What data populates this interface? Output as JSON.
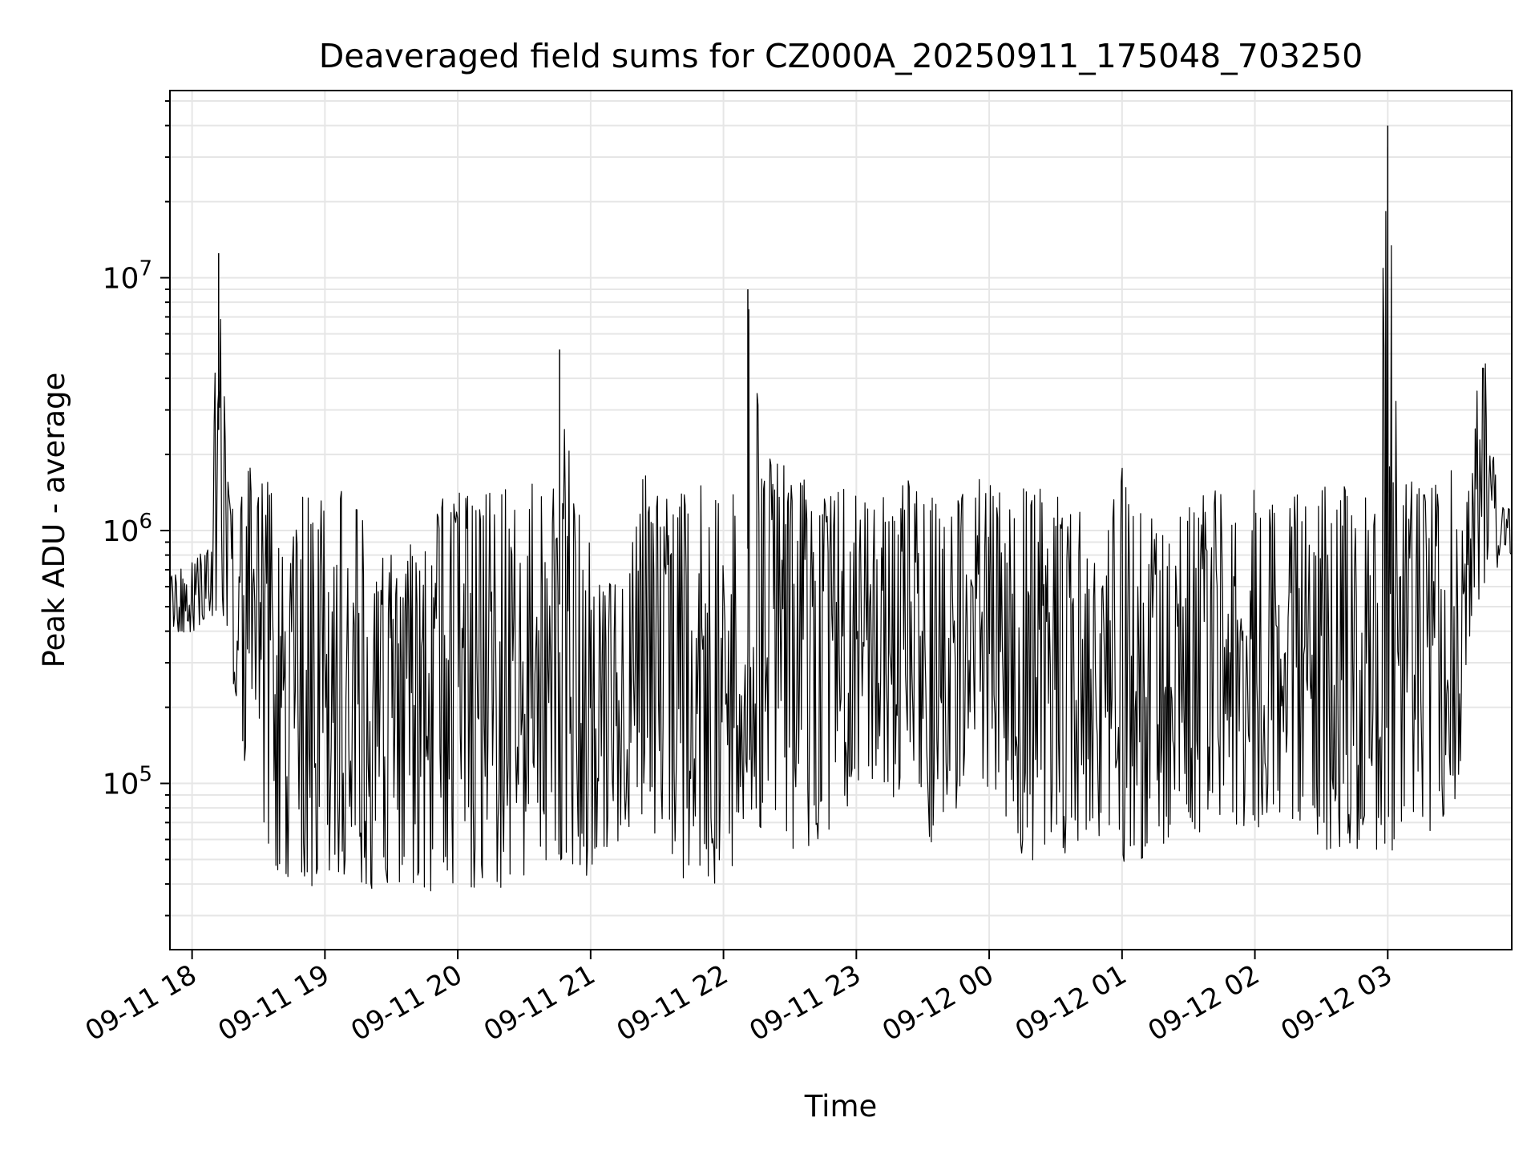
{
  "chart_data": {
    "type": "line",
    "title": "Deaveraged field sums for CZ000A_20250911_175048_703250",
    "xlabel": "Time",
    "ylabel": "Peak ADU - average",
    "yscale": "log",
    "grid": true,
    "xlim": [
      "2025-09-11 17:50",
      "2025-09-12 03:56"
    ],
    "ylim": [
      22000,
      55000000
    ],
    "x_ticks": [
      {
        "t": "2025-09-11 18:00",
        "label": "09-11 18"
      },
      {
        "t": "2025-09-11 19:00",
        "label": "09-11 19"
      },
      {
        "t": "2025-09-11 20:00",
        "label": "09-11 20"
      },
      {
        "t": "2025-09-11 21:00",
        "label": "09-11 21"
      },
      {
        "t": "2025-09-11 22:00",
        "label": "09-11 22"
      },
      {
        "t": "2025-09-11 23:00",
        "label": "09-11 23"
      },
      {
        "t": "2025-09-12 00:00",
        "label": "09-12 00"
      },
      {
        "t": "2025-09-12 01:00",
        "label": "09-12 01"
      },
      {
        "t": "2025-09-12 02:00",
        "label": "09-12 02"
      },
      {
        "t": "2025-09-12 03:00",
        "label": "09-12 03"
      }
    ],
    "y_ticks": [
      {
        "value": 100000,
        "base": "10",
        "exp": "5"
      },
      {
        "value": 1000000,
        "base": "10",
        "exp": "6"
      },
      {
        "value": 10000000,
        "base": "10",
        "exp": "7"
      }
    ],
    "line_color": "#000000",
    "series": [
      {
        "x": [
          "2025-09-11 17:50",
          "2025-09-11 17:58",
          "2025-09-11 18:06",
          "2025-09-11 18:12",
          "2025-09-11 18:17",
          "2025-09-11 18:21",
          "2025-09-11 18:26",
          "2025-09-11 18:31",
          "2025-09-11 18:38",
          "2025-09-11 18:45",
          "2025-09-11 18:52",
          "2025-09-11 18:57",
          "2025-09-11 19:02",
          "2025-09-11 19:10",
          "2025-09-11 19:16",
          "2025-09-11 19:22",
          "2025-09-11 19:30",
          "2025-09-11 19:36",
          "2025-09-11 19:42",
          "2025-09-11 19:49",
          "2025-09-11 19:55",
          "2025-09-11 20:04",
          "2025-09-11 20:13",
          "2025-09-11 20:22",
          "2025-09-11 20:30",
          "2025-09-11 20:37",
          "2025-09-11 20:43",
          "2025-09-11 20:46",
          "2025-09-11 20:52",
          "2025-09-11 20:58",
          "2025-09-11 21:06",
          "2025-09-11 21:15",
          "2025-09-11 21:24",
          "2025-09-11 21:33",
          "2025-09-11 21:42",
          "2025-09-11 21:50",
          "2025-09-11 21:56",
          "2025-09-11 22:02",
          "2025-09-11 22:08",
          "2025-09-11 22:11",
          "2025-09-11 22:18",
          "2025-09-11 22:26",
          "2025-09-11 22:35",
          "2025-09-11 22:45",
          "2025-09-11 22:55",
          "2025-09-11 23:06",
          "2025-09-11 23:16",
          "2025-09-11 23:26",
          "2025-09-11 23:36",
          "2025-09-11 23:46",
          "2025-09-11 23:55",
          "2025-09-12 00:04",
          "2025-09-12 00:14",
          "2025-09-12 00:20",
          "2025-09-12 00:26",
          "2025-09-12 00:34",
          "2025-09-12 00:44",
          "2025-09-12 00:54",
          "2025-09-12 01:02",
          "2025-09-12 01:07",
          "2025-09-12 01:14",
          "2025-09-12 01:24",
          "2025-09-12 01:34",
          "2025-09-12 01:44",
          "2025-09-12 01:54",
          "2025-09-12 02:04",
          "2025-09-12 02:14",
          "2025-09-12 02:24",
          "2025-09-12 02:34",
          "2025-09-12 02:44",
          "2025-09-12 02:54",
          "2025-09-12 03:00",
          "2025-09-12 03:06",
          "2025-09-12 03:14",
          "2025-09-12 03:22",
          "2025-09-12 03:30",
          "2025-09-12 03:36",
          "2025-09-12 03:40",
          "2025-09-12 03:44",
          "2025-09-12 03:50",
          "2025-09-12 03:56"
        ],
        "hi": [
          700000,
          720000,
          900000,
          12500000,
          1300000,
          1400000,
          2100000,
          1700000,
          1500000,
          1300000,
          1400000,
          1500000,
          1300000,
          1500000,
          1400000,
          750000,
          900000,
          1000000,
          950000,
          1400000,
          1500000,
          1400000,
          1500000,
          1500000,
          1500000,
          1600000,
          1600000,
          5200000,
          1500000,
          1300000,
          600000,
          700000,
          1700000,
          1400000,
          1500000,
          1600000,
          1600000,
          1600000,
          1500000,
          9000000,
          2000000,
          2100000,
          1600000,
          1500000,
          1500000,
          1300000,
          1400000,
          1700000,
          1400000,
          1500000,
          1600000,
          1500000,
          1700000,
          1800000,
          1600000,
          1500000,
          1300000,
          1400000,
          2000000,
          1400000,
          1200000,
          1300000,
          1500000,
          1500000,
          1400000,
          1500000,
          1400000,
          1500000,
          1500000,
          1500000,
          1400000,
          40000000,
          1600000,
          1600000,
          1700000,
          1800000,
          1400000,
          3600000,
          5000000,
          1300000,
          1200000
        ],
        "lo": [
          400000,
          380000,
          420000,
          500000,
          350000,
          150000,
          80000,
          50000,
          45000,
          42000,
          40000,
          38000,
          37000,
          36000,
          35000,
          36000,
          37000,
          36000,
          38000,
          37000,
          40000,
          38000,
          37000,
          39000,
          40000,
          42000,
          45000,
          50000,
          48000,
          40000,
          55000,
          60000,
          55000,
          52000,
          40000,
          38000,
          40000,
          42000,
          60000,
          80000,
          60000,
          55000,
          50000,
          60000,
          80000,
          90000,
          85000,
          90000,
          50000,
          80000,
          100000,
          90000,
          48000,
          48000,
          50000,
          50000,
          60000,
          55000,
          42000,
          48000,
          50000,
          55000,
          60000,
          70000,
          65000,
          60000,
          70000,
          65000,
          50000,
          55000,
          48000,
          50000,
          60000,
          65000,
          65000,
          80000,
          150000,
          500000,
          600000,
          700000,
          800000
        ]
      }
    ]
  }
}
